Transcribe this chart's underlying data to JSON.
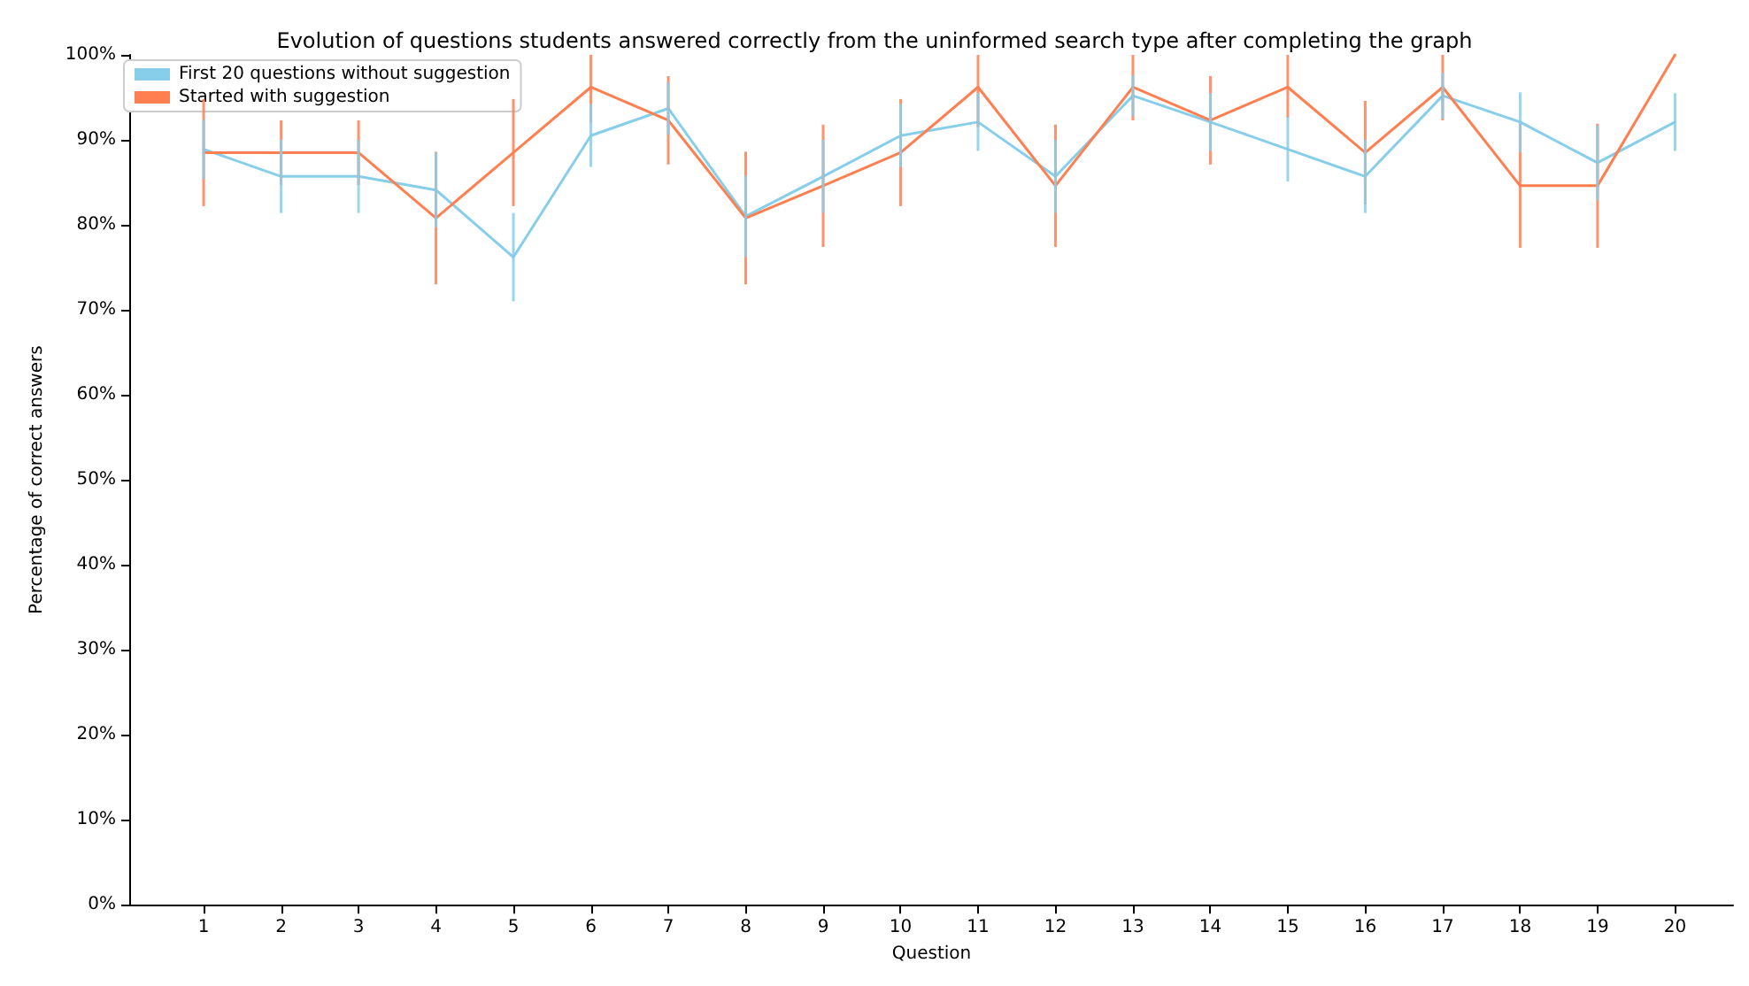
{
  "chart_data": {
    "type": "line",
    "title": "Evolution of questions students answered correctly from the uninformed search type after completing the graph",
    "xlabel": "Question",
    "ylabel": "Percentage of correct answers",
    "x": [
      1,
      2,
      3,
      4,
      5,
      6,
      7,
      8,
      9,
      10,
      11,
      12,
      13,
      14,
      15,
      16,
      17,
      18,
      19,
      20
    ],
    "series": [
      {
        "name": "First 20 questions without suggestion",
        "color": "#87ceeb",
        "values": [
          88.9,
          85.7,
          85.7,
          84.1,
          76.2,
          90.5,
          93.7,
          81.0,
          85.7,
          90.5,
          92.1,
          85.7,
          95.2,
          92.1,
          88.9,
          85.7,
          95.2,
          92.1,
          87.3,
          92.1
        ],
        "errors": [
          3.5,
          4.3,
          4.3,
          4.4,
          5.2,
          3.7,
          3.1,
          4.8,
          4.3,
          3.7,
          3.4,
          4.3,
          2.4,
          3.4,
          3.8,
          4.3,
          2.7,
          3.5,
          4.4,
          3.4
        ]
      },
      {
        "name": "Started with suggestion",
        "color": "#ff7f50",
        "values": [
          88.5,
          88.5,
          88.5,
          80.8,
          88.5,
          96.2,
          92.3,
          80.8,
          84.6,
          88.5,
          96.2,
          84.6,
          96.2,
          92.3,
          96.2,
          88.5,
          96.2,
          84.6,
          84.6,
          100
        ],
        "errors": [
          6.3,
          3.8,
          3.8,
          7.8,
          6.3,
          [
            92,
            100
          ],
          5.2,
          7.8,
          7.2,
          6.3,
          [
            91.5,
            100
          ],
          7.2,
          [
            92.3,
            100
          ],
          5.2,
          [
            92.6,
            100
          ],
          6.1,
          [
            92.3,
            100
          ],
          7.3,
          7.3,
          null
        ]
      }
    ],
    "xlim": [
      0.05,
      20.75
    ],
    "xticks": [
      1,
      2,
      3,
      4,
      5,
      6,
      7,
      8,
      9,
      10,
      11,
      12,
      13,
      14,
      15,
      16,
      17,
      18,
      19,
      20
    ],
    "ylim": [
      0,
      100
    ],
    "yticks": [
      {
        "value": 0,
        "label": "0%"
      },
      {
        "value": 10,
        "label": "10%"
      },
      {
        "value": 20,
        "label": "20%"
      },
      {
        "value": 30,
        "label": "30%"
      },
      {
        "value": 40,
        "label": "40%"
      },
      {
        "value": 50,
        "label": "50%"
      },
      {
        "value": 60,
        "label": "60%"
      },
      {
        "value": 70,
        "label": "70%"
      },
      {
        "value": 80,
        "label": "80%"
      },
      {
        "value": 90,
        "label": "90%"
      },
      {
        "value": 100,
        "label": "100%"
      }
    ],
    "legend": "top left",
    "grid": false,
    "marker": "none",
    "line_style": "solid"
  }
}
